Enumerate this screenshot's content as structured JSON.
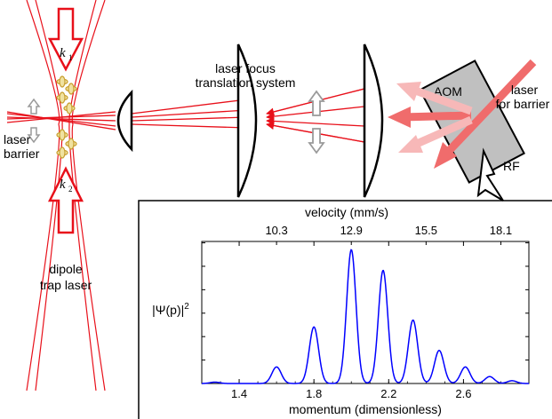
{
  "diagram": {
    "labels": {
      "k1": "k",
      "k1_sub": "1",
      "k2": "k",
      "k2_sub": "2",
      "laser_barrier_1": "laser",
      "laser_barrier_2": "barrier",
      "dipole_1": "dipole",
      "dipole_2": "trap laser",
      "focus_1": "laser focus",
      "focus_2": "translation system",
      "aom": "AOM",
      "laser_barrier_right_1": "laser",
      "laser_barrier_right_2": "for barrier",
      "rf": "RF"
    },
    "colors": {
      "beam": "#e8101a",
      "barrier_beam": "#f08080",
      "barrier_beam_light": "#f7b8b8",
      "aom_fill": "#c0c0c0",
      "atom": "#c8a030",
      "arrow_gray": "#9a9a9a",
      "curve": "#0000ff"
    }
  },
  "chart_data": {
    "type": "line",
    "ylabel": "|Ψ(p)|",
    "ylabel_sup": "2",
    "xlabel": "momentum (dimensionless)",
    "top_axis_label": "velocity (mm/s)",
    "x_ticks": [
      "1.4",
      "1.8",
      "2.2",
      "2.6"
    ],
    "x_tick_values": [
      1.4,
      1.8,
      2.2,
      2.6
    ],
    "top_ticks": [
      "10.3",
      "12.9",
      "15.5",
      "18.1"
    ],
    "top_tick_positions": [
      1.6,
      2.0,
      2.4,
      2.8
    ],
    "xlim": [
      1.2,
      2.95
    ],
    "ylim": [
      0,
      1.03
    ],
    "y_tick_labels_shown": false,
    "peaks": [
      {
        "x": 1.27,
        "y": 0.01
      },
      {
        "x": 1.6,
        "y": 0.12
      },
      {
        "x": 1.8,
        "y": 0.41
      },
      {
        "x": 2.0,
        "y": 0.97
      },
      {
        "x": 2.17,
        "y": 0.82
      },
      {
        "x": 2.33,
        "y": 0.46
      },
      {
        "x": 2.47,
        "y": 0.24
      },
      {
        "x": 2.61,
        "y": 0.12
      },
      {
        "x": 2.74,
        "y": 0.05
      },
      {
        "x": 2.86,
        "y": 0.02
      }
    ],
    "peak_width": 0.025,
    "grid": false
  }
}
